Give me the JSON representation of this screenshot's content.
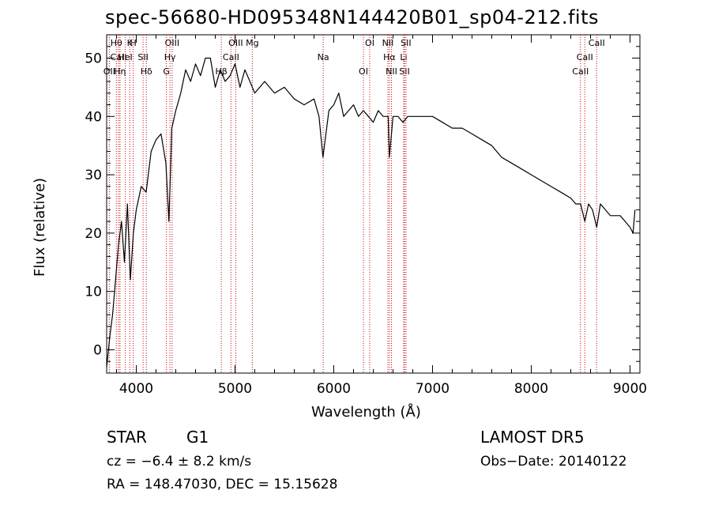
{
  "chart_data": {
    "type": "line",
    "title": "spec-56680-HD095348N144420B01_sp04-212.fits",
    "xlabel": "Wavelength (Å)",
    "ylabel": "Flux (relative)",
    "xlim": [
      3700,
      9100
    ],
    "ylim": [
      -4,
      54
    ],
    "x_ticks": [
      4000,
      5000,
      6000,
      7000,
      8000,
      9000
    ],
    "y_ticks": [
      0,
      10,
      20,
      30,
      40,
      50
    ],
    "grid": false,
    "legend": "none",
    "line_color": "#000000",
    "marker_color": "#cc0000",
    "series": [
      {
        "x": [
          3700,
          3730,
          3760,
          3790,
          3820,
          3850,
          3880,
          3910,
          3940,
          3970,
          4000,
          4050,
          4100,
          4150,
          4200,
          4250,
          4300,
          4330,
          4360,
          4400,
          4450,
          4500,
          4550,
          4600,
          4650,
          4700,
          4750,
          4800,
          4850,
          4900,
          4950,
          5000,
          5050,
          5100,
          5150,
          5200,
          5300,
          5400,
          5500,
          5600,
          5700,
          5800,
          5850,
          5890,
          5950,
          6000,
          6050,
          6100,
          6150,
          6200,
          6250,
          6300,
          6350,
          6400,
          6450,
          6500,
          6550,
          6563,
          6600,
          6650,
          6700,
          6750,
          6800,
          6900,
          7000,
          7100,
          7200,
          7300,
          7400,
          7500,
          7600,
          7700,
          7800,
          7900,
          8000,
          8100,
          8200,
          8300,
          8400,
          8450,
          8500,
          8542,
          8580,
          8620,
          8662,
          8700,
          8750,
          8800,
          8850,
          8900,
          8950,
          9000,
          9030,
          9050
        ],
        "y": [
          -3,
          2,
          6,
          12,
          18,
          22,
          15,
          25,
          12,
          20,
          24,
          28,
          27,
          34,
          36,
          37,
          32,
          22,
          38,
          41,
          44,
          48,
          46,
          49,
          47,
          50,
          50,
          45,
          48,
          46,
          47,
          49,
          45,
          48,
          46,
          44,
          46,
          44,
          45,
          43,
          42,
          43,
          40,
          33,
          41,
          42,
          44,
          40,
          41,
          42,
          40,
          41,
          40,
          39,
          41,
          40,
          40,
          33,
          40,
          40,
          39,
          40,
          40,
          40,
          40,
          39,
          38,
          38,
          37,
          36,
          35,
          33,
          32,
          31,
          30,
          29,
          28,
          27,
          26,
          25,
          25,
          22,
          25,
          24,
          21,
          25,
          24,
          23,
          23,
          23,
          22,
          21,
          20,
          24
        ]
      }
    ],
    "line_markers": [
      {
        "label": "Hθ",
        "x": 3798
      },
      {
        "label": "CaII",
        "x": 3820
      },
      {
        "label": "OII",
        "x": 3727
      },
      {
        "label": "K",
        "x": 3934
      },
      {
        "label": "HeI",
        "x": 3889
      },
      {
        "label": "Hη",
        "x": 3835
      },
      {
        "label": "H",
        "x": 3969
      },
      {
        "label": "SII",
        "x": 4069
      },
      {
        "label": "Hδ",
        "x": 4102
      },
      {
        "label": "OIII",
        "x": 4363
      },
      {
        "label": "Hγ",
        "x": 4341
      },
      {
        "label": "G",
        "x": 4305
      },
      {
        "label": "OIII",
        "x": 5007
      },
      {
        "label": "CaII",
        "x": 4959
      },
      {
        "label": "Hβ",
        "x": 4861
      },
      {
        "label": "Mg",
        "x": 5175
      },
      {
        "label": "Na",
        "x": 5893
      },
      {
        "label": "OI",
        "x": 6300
      },
      {
        "label": "OI",
        "x": 6364
      },
      {
        "label": "Hα",
        "x": 6563
      },
      {
        "label": "SII",
        "x": 6716
      },
      {
        "label": "NII",
        "x": 6548
      },
      {
        "label": "Li",
        "x": 6708
      },
      {
        "label": "NII",
        "x": 6584
      },
      {
        "label": "SII",
        "x": 6731
      },
      {
        "label": "CaII",
        "x": 8542
      },
      {
        "label": "CaII",
        "x": 8498
      },
      {
        "label": "CaII",
        "x": 8662
      }
    ]
  },
  "info": {
    "object_class": "STAR",
    "subclass": "G1",
    "survey": "LAMOST DR5",
    "cz": "cz = −6.4 ± 8.2 km/s",
    "obs_date": "Obs−Date: 20140122",
    "radec": "RA = 148.47030, DEC =  15.15628"
  }
}
